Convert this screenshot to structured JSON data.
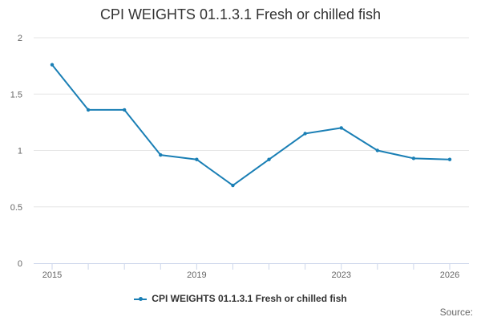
{
  "chart_data": {
    "type": "line",
    "title": "CPI WEIGHTS 01.1.3.1 Fresh or chilled fish",
    "xlabel": "",
    "ylabel": "",
    "x": [
      2015,
      2016,
      2017,
      2018,
      2019,
      2020,
      2021,
      2022,
      2023,
      2024,
      2025,
      2026
    ],
    "x_tick_labels": [
      "2015",
      "2019",
      "2023",
      "2026"
    ],
    "x_tick_values": [
      2015,
      2019,
      2023,
      2026
    ],
    "y_tick_labels": [
      "0",
      "0.5",
      "1",
      "1.5",
      "2"
    ],
    "y_tick_values": [
      0,
      0.5,
      1,
      1.5,
      2
    ],
    "xlim": [
      2015,
      2026
    ],
    "ylim": [
      0,
      2
    ],
    "grid": true,
    "legend_position": "bottom",
    "series": [
      {
        "name": "CPI WEIGHTS 01.1.3.1 Fresh or chilled fish",
        "color": "#1a7fb5",
        "values": [
          1.76,
          1.36,
          1.36,
          0.96,
          0.92,
          0.69,
          0.92,
          1.15,
          1.2,
          1.0,
          0.93,
          0.92
        ]
      }
    ]
  },
  "source_label": "Source:"
}
